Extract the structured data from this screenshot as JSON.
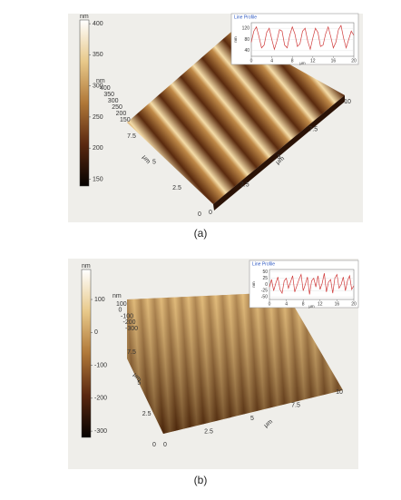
{
  "panels": [
    {
      "label": "(a)",
      "colorbar": {
        "unit": "nm",
        "ticks": [
          400,
          350,
          300,
          250,
          200,
          150
        ],
        "lim": [
          139,
          406
        ]
      },
      "surface": {
        "z_unit": "nm",
        "z_ticks": [
          400,
          350,
          300,
          250,
          200,
          150
        ],
        "x_unit": "μm",
        "x_ticks": [
          0,
          2.5,
          5,
          7.5,
          10
        ],
        "y_unit": "μm",
        "y_ticks": [
          0,
          2.5,
          5,
          7.5
        ]
      },
      "profile": {
        "title": "Line Profile",
        "x_unit": "μm",
        "y_unit": "nm",
        "xlim": [
          0,
          20
        ],
        "ylim": [
          20,
          140
        ],
        "xticks": [
          0,
          4,
          8,
          12,
          16,
          20
        ],
        "yticks": [
          40,
          80,
          120
        ],
        "color": "#d03a3a",
        "x": [
          0,
          0.5,
          1,
          1.5,
          2,
          2.5,
          3,
          3.5,
          4,
          4.5,
          5,
          5.5,
          6,
          6.5,
          7,
          7.5,
          8,
          8.5,
          9,
          9.5,
          10,
          10.5,
          11,
          11.5,
          12,
          12.5,
          13,
          13.5,
          14,
          14.5,
          15,
          15.5,
          16,
          16.5,
          17,
          17.5,
          18,
          18.5,
          19,
          19.5,
          20
        ],
        "values": [
          70,
          110,
          125,
          90,
          50,
          60,
          105,
          120,
          80,
          45,
          75,
          115,
          110,
          60,
          50,
          95,
          125,
          100,
          55,
          65,
          110,
          120,
          75,
          45,
          85,
          120,
          105,
          55,
          60,
          100,
          125,
          90,
          50,
          70,
          115,
          130,
          85,
          50,
          80,
          110,
          95
        ]
      }
    },
    {
      "label": "(b)",
      "colorbar": {
        "unit": "nm",
        "ticks": [
          100,
          0,
          -100,
          -200,
          -300
        ],
        "lim": [
          -319,
          191
        ]
      },
      "surface": {
        "z_unit": "nm",
        "z_ticks": [
          100,
          0,
          -100,
          -200,
          -300
        ],
        "x_unit": "μm",
        "x_ticks": [
          0,
          2.5,
          5,
          7.5,
          10
        ],
        "y_unit": "μm",
        "y_ticks": [
          0,
          2.5,
          5,
          7.5
        ]
      },
      "profile": {
        "title": "Line Profile",
        "x_unit": "μm",
        "y_unit": "nm",
        "xlim": [
          0,
          20
        ],
        "ylim": [
          -60,
          60
        ],
        "xticks": [
          0,
          4,
          8,
          12,
          16,
          20
        ],
        "yticks": [
          50,
          25,
          0,
          -25,
          -50
        ],
        "color": "#d03a3a",
        "x": [
          0,
          0.5,
          1,
          1.5,
          2,
          2.5,
          3,
          3.5,
          4,
          4.5,
          5,
          5.5,
          6,
          6.5,
          7,
          7.5,
          8,
          8.5,
          9,
          9.5,
          10,
          10.5,
          11,
          11.5,
          12,
          12.5,
          13,
          13.5,
          14,
          14.5,
          15,
          15.5,
          16,
          16.5,
          17,
          17.5,
          18,
          18.5,
          19,
          19.5,
          20
        ],
        "values": [
          -10,
          20,
          -25,
          5,
          30,
          -20,
          -35,
          15,
          25,
          -15,
          10,
          35,
          -30,
          -5,
          20,
          40,
          -25,
          0,
          30,
          -40,
          15,
          25,
          -10,
          35,
          -20,
          5,
          45,
          -30,
          10,
          20,
          -35,
          25,
          40,
          -15,
          0,
          30,
          -25,
          15,
          35,
          -20,
          -5
        ]
      }
    }
  ]
}
